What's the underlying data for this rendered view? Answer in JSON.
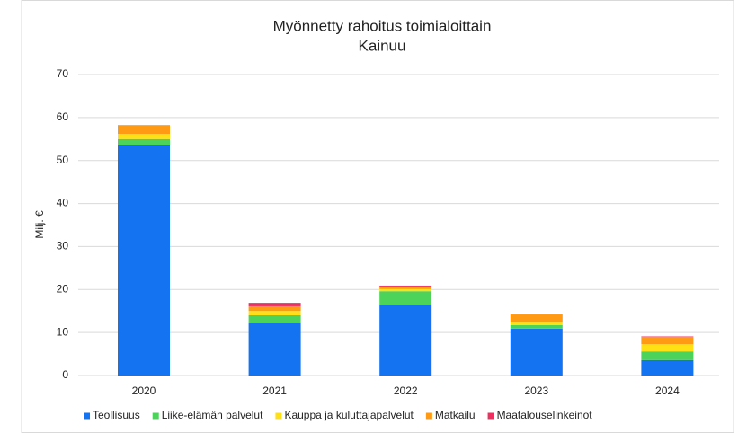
{
  "chart_data": {
    "type": "stacked_bar",
    "title": "Myönnetty  rahoitus toimialoittain",
    "subtitle": "Kainuu",
    "y_label": "Milj. €",
    "categories": [
      "2020",
      "2021",
      "2022",
      "2023",
      "2024"
    ],
    "series": [
      {
        "name": "Teollisuus",
        "color": "#1473f0",
        "values": [
          53.7,
          12.3,
          16.3,
          10.9,
          3.6
        ]
      },
      {
        "name": "Liike-elämän palvelut",
        "color": "#4cd35a",
        "values": [
          1.3,
          1.7,
          3.3,
          0.8,
          2.0
        ]
      },
      {
        "name": "Kauppa ja kuluttajapalvelut",
        "color": "#ffe014",
        "values": [
          1.2,
          1.0,
          0.5,
          0.8,
          1.7
        ]
      },
      {
        "name": "Matkailu",
        "color": "#ff9a14",
        "values": [
          1.9,
          1.1,
          0.6,
          1.7,
          1.7
        ]
      },
      {
        "name": "Maatalouselinkeinot",
        "color": "#ee3060",
        "values": [
          0.1,
          0.8,
          0.2,
          0,
          0.1
        ]
      }
    ],
    "ylim": [
      0,
      70
    ],
    "yticks": [
      0,
      10,
      20,
      30,
      40,
      50,
      60,
      70
    ],
    "grid": true,
    "legend": "bottom"
  }
}
